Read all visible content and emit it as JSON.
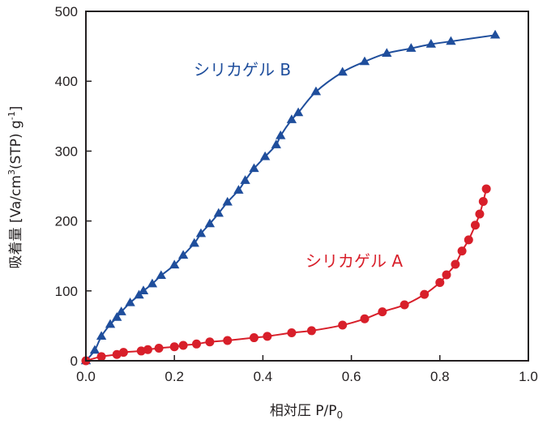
{
  "chart_data": {
    "type": "scatter",
    "xlabel": "相対圧 P/P",
    "xlabel_sub": "0",
    "ylabel": "吸着量 [Va/cm",
    "ylabel_sup": "3",
    "ylabel_mid": "(STP) g",
    "ylabel_sup2": "-1",
    "ylabel_end": "]",
    "xlim": [
      0,
      1.0
    ],
    "ylim": [
      0,
      500
    ],
    "x_ticks": [
      "0.0",
      "0.2",
      "0.4",
      "0.6",
      "0.8",
      "1.0"
    ],
    "y_ticks": [
      "0",
      "100",
      "200",
      "300",
      "400",
      "500"
    ],
    "grid": false,
    "series": [
      {
        "name": "シリカゲル B",
        "color": "#1f4e9c",
        "marker": "triangle",
        "x": [
          0.0,
          0.02,
          0.035,
          0.055,
          0.07,
          0.08,
          0.1,
          0.12,
          0.13,
          0.15,
          0.17,
          0.2,
          0.22,
          0.245,
          0.26,
          0.28,
          0.3,
          0.32,
          0.345,
          0.36,
          0.38,
          0.405,
          0.43,
          0.44,
          0.465,
          0.48,
          0.52,
          0.58,
          0.63,
          0.68,
          0.735,
          0.78,
          0.825,
          0.925
        ],
        "y": [
          0,
          15,
          35,
          52,
          62,
          70,
          83,
          94,
          100,
          110,
          122,
          137,
          151,
          168,
          182,
          196,
          211,
          227,
          244,
          258,
          275,
          292,
          309,
          322,
          345,
          355,
          385,
          413,
          428,
          440,
          447,
          453,
          457,
          466
        ]
      },
      {
        "name": "シリカゲル A",
        "color": "#d81f2a",
        "marker": "circle",
        "x": [
          0.0,
          0.035,
          0.07,
          0.085,
          0.125,
          0.14,
          0.165,
          0.2,
          0.22,
          0.25,
          0.28,
          0.32,
          0.38,
          0.41,
          0.465,
          0.51,
          0.58,
          0.63,
          0.67,
          0.72,
          0.765,
          0.8,
          0.815,
          0.835,
          0.85,
          0.865,
          0.88,
          0.89,
          0.898,
          0.905
        ],
        "y": [
          0,
          6,
          9,
          12,
          14,
          16,
          18,
          20,
          22,
          24,
          27,
          29,
          33,
          35,
          40,
          43,
          51,
          60,
          70,
          80,
          95,
          112,
          123,
          138,
          157,
          173,
          194,
          210,
          228,
          246
        ]
      }
    ]
  }
}
